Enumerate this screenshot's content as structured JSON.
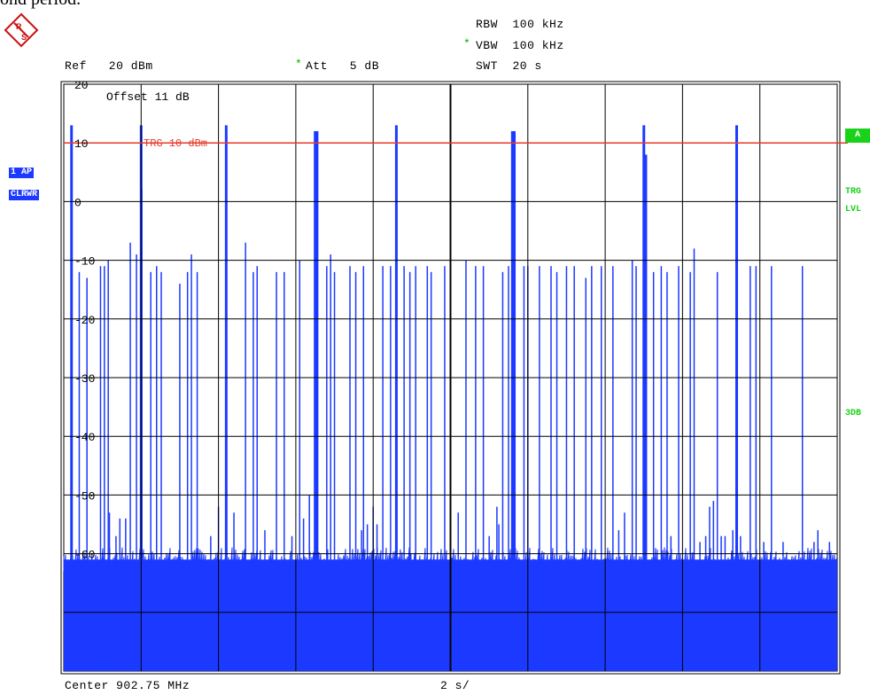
{
  "caption": "ond period.",
  "logo": "R&S",
  "header": {
    "rbw": "RBW  100 kHz",
    "vbw": "VBW  100 kHz",
    "swt": "SWT  20 s",
    "ref": "Ref   20 dBm",
    "att": "Att   5 dB",
    "star": "*"
  },
  "trace": {
    "line1": "1 AP",
    "line2": "CLRWR"
  },
  "markers": {
    "a": "A",
    "trg": "TRG",
    "lvl": "LVL",
    "db3": "3DB"
  },
  "chart_data": {
    "type": "line",
    "ylim": [
      -80,
      20
    ],
    "y_ticks": [
      20,
      10,
      0,
      -10,
      -20,
      -30,
      -40,
      -50,
      -60
    ],
    "y_tick_labels": [
      "20",
      "10",
      "0",
      "-10",
      "-20",
      "-30",
      "-40",
      "-50",
      "-60"
    ],
    "offset_label": "Offset   11 dB",
    "trigger": {
      "value": 10,
      "label": "TRG 10 dBm"
    },
    "x_footer_left": "Center 902.75 MHz",
    "x_footer_center": "2 s/",
    "xlim": [
      0,
      20
    ],
    "noise_floor_dbm": -61,
    "colors": {
      "trace": "#1c3aff",
      "trigger": "#e53a2a",
      "grid": "#000000"
    },
    "bursts": [
      {
        "x": 0.2,
        "y": 13
      },
      {
        "x": 0.4,
        "y": -12
      },
      {
        "x": 0.6,
        "y": -13
      },
      {
        "x": 0.95,
        "y": -11
      },
      {
        "x": 1.05,
        "y": -11
      },
      {
        "x": 1.15,
        "y": -10
      },
      {
        "x": 1.18,
        "y": -53
      },
      {
        "x": 1.35,
        "y": -57
      },
      {
        "x": 1.45,
        "y": -54
      },
      {
        "x": 1.6,
        "y": -54
      },
      {
        "x": 1.72,
        "y": -7
      },
      {
        "x": 1.88,
        "y": -9
      },
      {
        "x": 2.0,
        "y": 13
      },
      {
        "x": 2.02,
        "y": 2
      },
      {
        "x": 2.25,
        "y": -12
      },
      {
        "x": 2.4,
        "y": -11
      },
      {
        "x": 2.52,
        "y": -12
      },
      {
        "x": 3.0,
        "y": -14
      },
      {
        "x": 3.2,
        "y": -12
      },
      {
        "x": 3.3,
        "y": -9
      },
      {
        "x": 3.45,
        "y": -12
      },
      {
        "x": 3.8,
        "y": -57
      },
      {
        "x": 4.0,
        "y": -52
      },
      {
        "x": 4.2,
        "y": 13
      },
      {
        "x": 4.4,
        "y": -53
      },
      {
        "x": 4.7,
        "y": -7
      },
      {
        "x": 4.9,
        "y": -12
      },
      {
        "x": 5.0,
        "y": -11
      },
      {
        "x": 5.2,
        "y": -56
      },
      {
        "x": 5.5,
        "y": -12
      },
      {
        "x": 5.7,
        "y": -12
      },
      {
        "x": 5.9,
        "y": -57
      },
      {
        "x": 6.1,
        "y": -10
      },
      {
        "x": 6.2,
        "y": -54
      },
      {
        "x": 6.35,
        "y": -50
      },
      {
        "x": 6.5,
        "y": 12
      },
      {
        "x": 6.55,
        "y": 12
      },
      {
        "x": 6.8,
        "y": -11
      },
      {
        "x": 6.9,
        "y": -9
      },
      {
        "x": 7.0,
        "y": -12
      },
      {
        "x": 7.4,
        "y": -11
      },
      {
        "x": 7.55,
        "y": -12
      },
      {
        "x": 7.75,
        "y": -11
      },
      {
        "x": 7.7,
        "y": -56
      },
      {
        "x": 7.85,
        "y": -55
      },
      {
        "x": 8.0,
        "y": -52
      },
      {
        "x": 8.1,
        "y": -55
      },
      {
        "x": 8.25,
        "y": -11
      },
      {
        "x": 8.45,
        "y": -11
      },
      {
        "x": 8.6,
        "y": 13
      },
      {
        "x": 8.8,
        "y": -11
      },
      {
        "x": 8.95,
        "y": -12
      },
      {
        "x": 9.1,
        "y": -11
      },
      {
        "x": 9.4,
        "y": -11
      },
      {
        "x": 9.5,
        "y": -12
      },
      {
        "x": 9.85,
        "y": -11
      },
      {
        "x": 10.0,
        "y": -12
      },
      {
        "x": 10.2,
        "y": -53
      },
      {
        "x": 10.4,
        "y": -10
      },
      {
        "x": 10.65,
        "y": -11
      },
      {
        "x": 10.85,
        "y": -11
      },
      {
        "x": 11.0,
        "y": -57
      },
      {
        "x": 11.2,
        "y": -52
      },
      {
        "x": 11.25,
        "y": -55
      },
      {
        "x": 11.35,
        "y": -12
      },
      {
        "x": 11.5,
        "y": -11
      },
      {
        "x": 11.6,
        "y": 12
      },
      {
        "x": 11.65,
        "y": 12
      },
      {
        "x": 11.9,
        "y": -11
      },
      {
        "x": 12.0,
        "y": -11
      },
      {
        "x": 12.3,
        "y": -11
      },
      {
        "x": 12.6,
        "y": -11
      },
      {
        "x": 12.75,
        "y": -12
      },
      {
        "x": 13.0,
        "y": -11
      },
      {
        "x": 13.2,
        "y": -11
      },
      {
        "x": 13.5,
        "y": -13
      },
      {
        "x": 13.65,
        "y": -11
      },
      {
        "x": 13.9,
        "y": -11
      },
      {
        "x": 14.2,
        "y": -11
      },
      {
        "x": 14.35,
        "y": -56
      },
      {
        "x": 14.5,
        "y": -53
      },
      {
        "x": 14.7,
        "y": -10
      },
      {
        "x": 14.8,
        "y": -11
      },
      {
        "x": 15.0,
        "y": 13
      },
      {
        "x": 15.05,
        "y": 8
      },
      {
        "x": 15.25,
        "y": -12
      },
      {
        "x": 15.45,
        "y": -11
      },
      {
        "x": 15.6,
        "y": -12
      },
      {
        "x": 15.7,
        "y": -57
      },
      {
        "x": 15.9,
        "y": -11
      },
      {
        "x": 16.2,
        "y": -12
      },
      {
        "x": 16.3,
        "y": -8
      },
      {
        "x": 16.45,
        "y": -58
      },
      {
        "x": 16.6,
        "y": -57
      },
      {
        "x": 16.7,
        "y": -52
      },
      {
        "x": 16.8,
        "y": -51
      },
      {
        "x": 16.9,
        "y": -12
      },
      {
        "x": 17.0,
        "y": -57
      },
      {
        "x": 17.1,
        "y": -57
      },
      {
        "x": 17.3,
        "y": -56
      },
      {
        "x": 17.4,
        "y": 13
      },
      {
        "x": 17.5,
        "y": -57
      },
      {
        "x": 17.75,
        "y": -11
      },
      {
        "x": 17.9,
        "y": -11
      },
      {
        "x": 18.1,
        "y": -58
      },
      {
        "x": 18.3,
        "y": -11
      },
      {
        "x": 18.6,
        "y": -58
      },
      {
        "x": 19.8,
        "y": -58
      },
      {
        "x": 19.1,
        "y": -11
      },
      {
        "x": 19.4,
        "y": -58
      },
      {
        "x": 19.5,
        "y": -56
      }
    ]
  }
}
